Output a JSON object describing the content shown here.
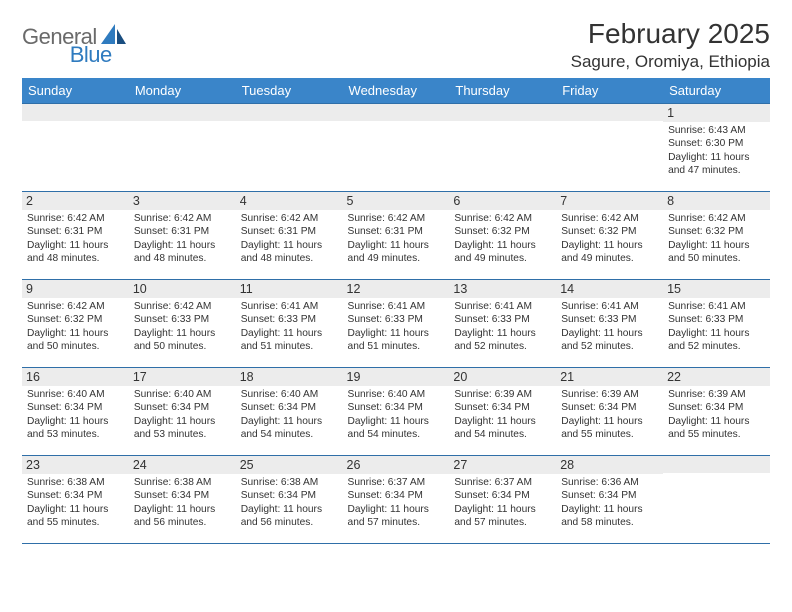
{
  "logo": {
    "text1": "General",
    "text2": "Blue"
  },
  "header": {
    "month_title": "February 2025",
    "location": "Sagure, Oromiya, Ethiopia"
  },
  "colors": {
    "header_bg": "#3a85c9",
    "header_text": "#ffffff",
    "cell_border": "#2f6fa8",
    "daynum_bg": "#ececec",
    "text": "#333333",
    "logo_gray": "#6a6a6a",
    "logo_blue": "#2f7bbf"
  },
  "weekdays": [
    "Sunday",
    "Monday",
    "Tuesday",
    "Wednesday",
    "Thursday",
    "Friday",
    "Saturday"
  ],
  "weeks": [
    [
      {
        "n": "",
        "sr": "",
        "ss": "",
        "dl": ""
      },
      {
        "n": "",
        "sr": "",
        "ss": "",
        "dl": ""
      },
      {
        "n": "",
        "sr": "",
        "ss": "",
        "dl": ""
      },
      {
        "n": "",
        "sr": "",
        "ss": "",
        "dl": ""
      },
      {
        "n": "",
        "sr": "",
        "ss": "",
        "dl": ""
      },
      {
        "n": "",
        "sr": "",
        "ss": "",
        "dl": ""
      },
      {
        "n": "1",
        "sr": "6:43 AM",
        "ss": "6:30 PM",
        "dl": "11 hours and 47 minutes."
      }
    ],
    [
      {
        "n": "2",
        "sr": "6:42 AM",
        "ss": "6:31 PM",
        "dl": "11 hours and 48 minutes."
      },
      {
        "n": "3",
        "sr": "6:42 AM",
        "ss": "6:31 PM",
        "dl": "11 hours and 48 minutes."
      },
      {
        "n": "4",
        "sr": "6:42 AM",
        "ss": "6:31 PM",
        "dl": "11 hours and 48 minutes."
      },
      {
        "n": "5",
        "sr": "6:42 AM",
        "ss": "6:31 PM",
        "dl": "11 hours and 49 minutes."
      },
      {
        "n": "6",
        "sr": "6:42 AM",
        "ss": "6:32 PM",
        "dl": "11 hours and 49 minutes."
      },
      {
        "n": "7",
        "sr": "6:42 AM",
        "ss": "6:32 PM",
        "dl": "11 hours and 49 minutes."
      },
      {
        "n": "8",
        "sr": "6:42 AM",
        "ss": "6:32 PM",
        "dl": "11 hours and 50 minutes."
      }
    ],
    [
      {
        "n": "9",
        "sr": "6:42 AM",
        "ss": "6:32 PM",
        "dl": "11 hours and 50 minutes."
      },
      {
        "n": "10",
        "sr": "6:42 AM",
        "ss": "6:33 PM",
        "dl": "11 hours and 50 minutes."
      },
      {
        "n": "11",
        "sr": "6:41 AM",
        "ss": "6:33 PM",
        "dl": "11 hours and 51 minutes."
      },
      {
        "n": "12",
        "sr": "6:41 AM",
        "ss": "6:33 PM",
        "dl": "11 hours and 51 minutes."
      },
      {
        "n": "13",
        "sr": "6:41 AM",
        "ss": "6:33 PM",
        "dl": "11 hours and 52 minutes."
      },
      {
        "n": "14",
        "sr": "6:41 AM",
        "ss": "6:33 PM",
        "dl": "11 hours and 52 minutes."
      },
      {
        "n": "15",
        "sr": "6:41 AM",
        "ss": "6:33 PM",
        "dl": "11 hours and 52 minutes."
      }
    ],
    [
      {
        "n": "16",
        "sr": "6:40 AM",
        "ss": "6:34 PM",
        "dl": "11 hours and 53 minutes."
      },
      {
        "n": "17",
        "sr": "6:40 AM",
        "ss": "6:34 PM",
        "dl": "11 hours and 53 minutes."
      },
      {
        "n": "18",
        "sr": "6:40 AM",
        "ss": "6:34 PM",
        "dl": "11 hours and 54 minutes."
      },
      {
        "n": "19",
        "sr": "6:40 AM",
        "ss": "6:34 PM",
        "dl": "11 hours and 54 minutes."
      },
      {
        "n": "20",
        "sr": "6:39 AM",
        "ss": "6:34 PM",
        "dl": "11 hours and 54 minutes."
      },
      {
        "n": "21",
        "sr": "6:39 AM",
        "ss": "6:34 PM",
        "dl": "11 hours and 55 minutes."
      },
      {
        "n": "22",
        "sr": "6:39 AM",
        "ss": "6:34 PM",
        "dl": "11 hours and 55 minutes."
      }
    ],
    [
      {
        "n": "23",
        "sr": "6:38 AM",
        "ss": "6:34 PM",
        "dl": "11 hours and 55 minutes."
      },
      {
        "n": "24",
        "sr": "6:38 AM",
        "ss": "6:34 PM",
        "dl": "11 hours and 56 minutes."
      },
      {
        "n": "25",
        "sr": "6:38 AM",
        "ss": "6:34 PM",
        "dl": "11 hours and 56 minutes."
      },
      {
        "n": "26",
        "sr": "6:37 AM",
        "ss": "6:34 PM",
        "dl": "11 hours and 57 minutes."
      },
      {
        "n": "27",
        "sr": "6:37 AM",
        "ss": "6:34 PM",
        "dl": "11 hours and 57 minutes."
      },
      {
        "n": "28",
        "sr": "6:36 AM",
        "ss": "6:34 PM",
        "dl": "11 hours and 58 minutes."
      },
      {
        "n": "",
        "sr": "",
        "ss": "",
        "dl": ""
      }
    ]
  ],
  "labels": {
    "sunrise": "Sunrise:",
    "sunset": "Sunset:",
    "daylight": "Daylight:"
  }
}
